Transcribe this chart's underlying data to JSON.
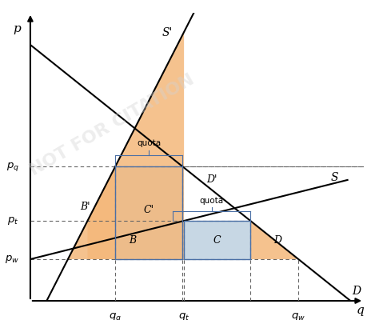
{
  "pw": 1.3,
  "pt": 2.5,
  "pq": 4.2,
  "qq": 2.6,
  "qt": 4.7,
  "qw": 8.2,
  "xlim": [
    0,
    10.2
  ],
  "ylim": [
    0,
    9.0
  ],
  "orange_color": "#f4b87a",
  "blue_color": "#bdd0e0",
  "bracket_color": "#4a6fa5",
  "line_color": "#000000",
  "dashed_color": "#666666",
  "label_S": "S",
  "label_Sp": "S'",
  "label_D": "D",
  "label_pw": "$p_w$",
  "label_pt": "$p_t$",
  "label_pq": "$p_q$",
  "label_p": "p",
  "label_qq": "$q_q$",
  "label_qt": "$q_t$",
  "label_qw": "$q_w$",
  "label_q": "q",
  "label_B": "B",
  "label_C": "C",
  "label_Dp": "D",
  "label_Bp": "B'",
  "label_Cp": "C'",
  "label_Dpp": "D'",
  "label_quota_top": "quota",
  "label_quota_right": "quota",
  "watermark": "NOT FOR CITATION",
  "figwidth": 4.74,
  "figheight": 4.0,
  "dpi": 100
}
